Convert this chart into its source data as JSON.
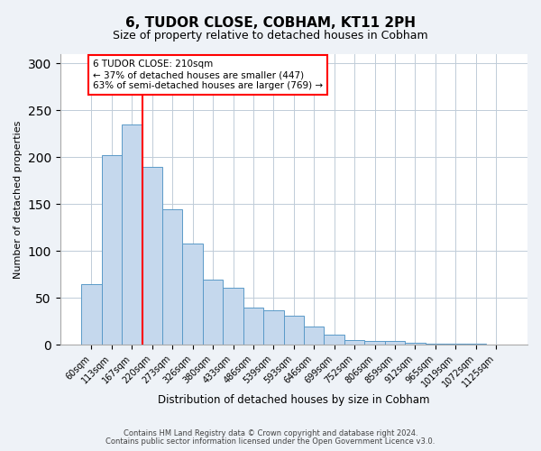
{
  "title": "6, TUDOR CLOSE, COBHAM, KT11 2PH",
  "subtitle": "Size of property relative to detached houses in Cobham",
  "xlabel": "Distribution of detached houses by size in Cobham",
  "ylabel": "Number of detached properties",
  "bar_labels": [
    "60sqm",
    "113sqm",
    "167sqm",
    "220sqm",
    "273sqm",
    "326sqm",
    "380sqm",
    "433sqm",
    "486sqm",
    "539sqm",
    "593sqm",
    "646sqm",
    "699sqm",
    "752sqm",
    "806sqm",
    "859sqm",
    "912sqm",
    "965sqm",
    "1019sqm",
    "1072sqm",
    "1125sqm"
  ],
  "bar_values": [
    65,
    202,
    235,
    190,
    145,
    108,
    70,
    61,
    40,
    37,
    31,
    20,
    11,
    5,
    4,
    4,
    2,
    1,
    1,
    1,
    0
  ],
  "bar_color": "#c5d8ed",
  "bar_edge_color": "#5a9ac8",
  "vline_color": "red",
  "vline_x": 2.5,
  "annotation_box_text": "6 TUDOR CLOSE: 210sqm\n← 37% of detached houses are smaller (447)\n63% of semi-detached houses are larger (769) →",
  "ylim": [
    0,
    310
  ],
  "yticks": [
    0,
    50,
    100,
    150,
    200,
    250,
    300
  ],
  "footer1": "Contains HM Land Registry data © Crown copyright and database right 2024.",
  "footer2": "Contains public sector information licensed under the Open Government Licence v3.0.",
  "bg_color": "#eef2f7",
  "plot_bg_color": "#ffffff"
}
